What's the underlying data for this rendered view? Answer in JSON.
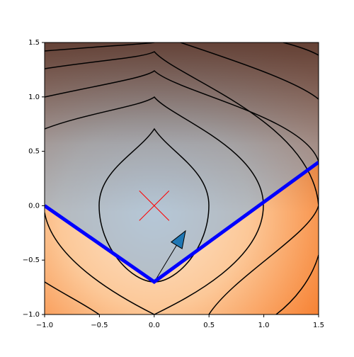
{
  "chart_data": {
    "type": "line",
    "x": [
      -1,
      0,
      1.5
    ],
    "series": [
      {
        "color": "#0000ff",
        "values": [
          0,
          -0.7,
          0.4
        ]
      }
    ],
    "points": {
      "x": [
        0
      ],
      "y": [
        0
      ],
      "color": "#ff0000"
    },
    "xlim": [
      -1,
      1.5
    ],
    "ylim": [
      -1,
      1.5
    ],
    "xticks": [
      {
        "value": -1,
        "label": "−1.0"
      },
      {
        "value": -0.5,
        "label": "−0.5"
      },
      {
        "value": 0,
        "label": "0.0"
      },
      {
        "value": 0.5,
        "label": "0.5"
      },
      {
        "value": 1,
        "label": "1.0"
      },
      {
        "value": 1.5,
        "label": "1.5"
      }
    ],
    "yticks": [
      {
        "value": -1,
        "label": "−1.0"
      },
      {
        "value": -0.5,
        "label": "−0.5"
      },
      {
        "value": 0,
        "label": "0.0"
      },
      {
        "value": 0.5,
        "label": "0.5"
      },
      {
        "value": 1,
        "label": "1.0"
      },
      {
        "value": 1.5,
        "label": "1.5"
      }
    ],
    "grid": false
  }
}
